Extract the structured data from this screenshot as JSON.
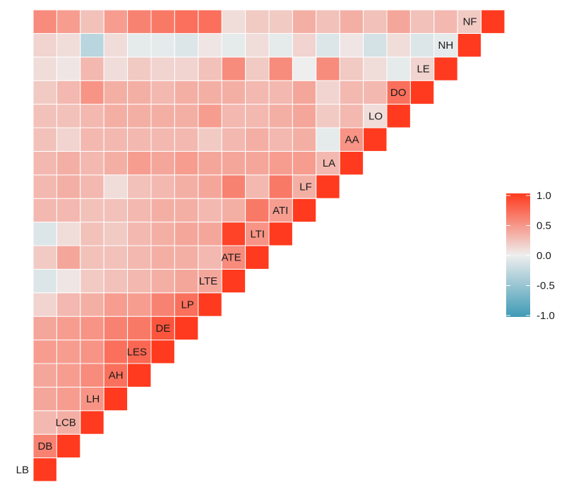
{
  "chart_data": {
    "type": "heatmap",
    "variables": [
      "LB",
      "DB",
      "LCB",
      "LH",
      "AH",
      "LES",
      "DE",
      "LP",
      "LTE",
      "ATE",
      "LTI",
      "ATI",
      "LF",
      "LA",
      "AA",
      "LO",
      "DO",
      "LE",
      "NH",
      "NF"
    ],
    "matrix_layout": "lower-triangle",
    "values": [
      [
        1.0
      ],
      [
        0.6,
        1.0
      ],
      [
        0.3,
        0.35,
        1.0
      ],
      [
        0.4,
        0.45,
        0.5,
        1.0
      ],
      [
        0.4,
        0.45,
        0.55,
        0.7,
        1.0
      ],
      [
        0.45,
        0.45,
        0.5,
        0.7,
        0.75,
        1.0
      ],
      [
        0.4,
        0.45,
        0.5,
        0.6,
        0.65,
        0.85,
        1.0
      ],
      [
        0.15,
        0.3,
        0.35,
        0.45,
        0.45,
        0.6,
        0.7,
        1.0
      ],
      [
        -0.1,
        0.05,
        0.2,
        0.25,
        0.3,
        0.35,
        0.4,
        0.4,
        1.0
      ],
      [
        0.2,
        0.4,
        0.25,
        0.25,
        0.3,
        0.35,
        0.35,
        0.3,
        0.55,
        1.0
      ],
      [
        -0.1,
        0.1,
        0.25,
        0.2,
        0.3,
        0.35,
        0.4,
        0.4,
        0.95,
        0.5,
        1.0
      ],
      [
        0.3,
        0.3,
        0.25,
        0.25,
        0.3,
        0.35,
        0.35,
        0.3,
        0.35,
        0.65,
        0.45,
        1.0
      ],
      [
        0.3,
        0.35,
        0.3,
        0.1,
        0.25,
        0.3,
        0.35,
        0.4,
        0.6,
        0.3,
        0.65,
        0.35,
        1.0
      ],
      [
        0.3,
        0.35,
        0.3,
        0.35,
        0.45,
        0.4,
        0.45,
        0.4,
        0.4,
        0.4,
        0.45,
        0.45,
        0.3,
        1.0
      ],
      [
        0.25,
        0.15,
        0.3,
        0.3,
        0.3,
        0.3,
        0.3,
        0.2,
        0.3,
        0.35,
        0.3,
        0.35,
        -0.05,
        0.5,
        1.0
      ],
      [
        0.25,
        0.25,
        0.3,
        0.35,
        0.35,
        0.35,
        0.35,
        0.45,
        0.3,
        0.3,
        0.35,
        0.4,
        0.2,
        0.3,
        0.1,
        1.0
      ],
      [
        0.2,
        0.3,
        0.5,
        0.35,
        0.35,
        0.3,
        0.35,
        0.35,
        0.35,
        0.3,
        0.3,
        0.4,
        0.15,
        0.3,
        0.3,
        0.7,
        1.0
      ],
      [
        0.1,
        0.05,
        0.3,
        0.1,
        0.2,
        0.15,
        0.15,
        0.25,
        0.55,
        0.2,
        0.55,
        0.0,
        0.55,
        0.2,
        0.1,
        -0.05,
        0.15,
        1.0
      ],
      [
        0.15,
        0.1,
        -0.3,
        0.1,
        -0.05,
        -0.05,
        -0.1,
        0.05,
        -0.05,
        0.1,
        -0.05,
        0.15,
        -0.1,
        0.05,
        -0.15,
        0.1,
        -0.1,
        -0.05,
        1.0
      ],
      [
        0.55,
        0.45,
        0.25,
        0.45,
        0.6,
        0.65,
        0.7,
        0.7,
        0.1,
        0.2,
        0.2,
        0.35,
        0.25,
        0.35,
        0.25,
        0.4,
        0.25,
        0.3,
        0.2,
        1.0
      ]
    ],
    "legend": {
      "position": "right",
      "ticks": [
        "1.0",
        "0.5",
        "0.0",
        "-0.5",
        "-1.0"
      ]
    },
    "colors": {
      "high": "#FF3A1E",
      "mid": "#EEEEEE",
      "low": "#3E9AB5",
      "cell_border": "#FFFFFF"
    },
    "range": [
      -1.0,
      1.0
    ]
  }
}
